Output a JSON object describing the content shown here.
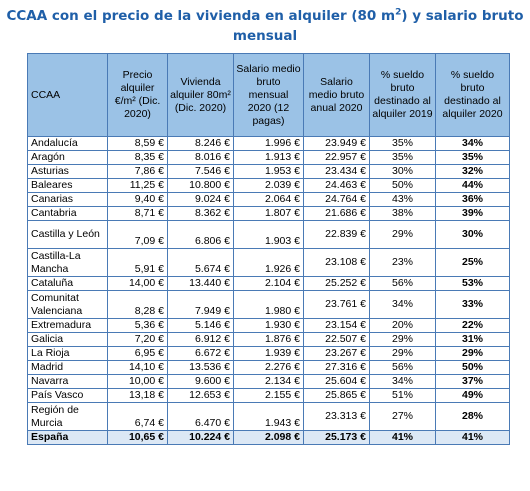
{
  "title": {
    "line1_pre": "CCAA con el precio de la vivienda en alquiler (80 m",
    "sup": "2",
    "line1_post": ") y salario bruto",
    "line2": "mensual"
  },
  "headers": {
    "ccaa": "CCAA",
    "precio": "Precio alquiler €/m² (Dic. 2020)",
    "vivienda": "Vivienda alquiler 80m² (Dic. 2020)",
    "salario_mensual": "Salario medio bruto mensual 2020 (12 pagas)",
    "salario_anual": "Salario medio bruto anual 2020",
    "pct2019": "% sueldo bruto destinado al alquiler 2019",
    "pct2020": "% sueldo bruto destinado al alquiler 2020"
  },
  "rows": [
    {
      "ccaa": "Andalucía",
      "precio": "8,59 €",
      "vivienda": "8.246 €",
      "mensual": "1.996 €",
      "anual": "23.949 €",
      "p2019": "35%",
      "p2020": "34%"
    },
    {
      "ccaa": "Aragón",
      "precio": "8,35 €",
      "vivienda": "8.016 €",
      "mensual": "1.913 €",
      "anual": "22.957 €",
      "p2019": "35%",
      "p2020": "35%"
    },
    {
      "ccaa": "Asturias",
      "precio": "7,86 €",
      "vivienda": "7.546 €",
      "mensual": "1.953 €",
      "anual": "23.434 €",
      "p2019": "30%",
      "p2020": "32%"
    },
    {
      "ccaa": "Baleares",
      "precio": "11,25 €",
      "vivienda": "10.800 €",
      "mensual": "2.039 €",
      "anual": "24.463 €",
      "p2019": "50%",
      "p2020": "44%"
    },
    {
      "ccaa": "Canarias",
      "precio": "9,40 €",
      "vivienda": "9.024 €",
      "mensual": "2.064 €",
      "anual": "24.764 €",
      "p2019": "43%",
      "p2020": "36%"
    },
    {
      "ccaa": "Cantabria",
      "precio": "8,71 €",
      "vivienda": "8.362 €",
      "mensual": "1.807 €",
      "anual": "21.686 €",
      "p2019": "38%",
      "p2020": "39%"
    },
    {
      "ccaa": "Castilla y León",
      "precio": "7,09 €",
      "vivienda": "6.806 €",
      "mensual": "1.903 €",
      "anual": "22.839 €",
      "p2019": "29%",
      "p2020": "30%",
      "tall": true
    },
    {
      "ccaa": "Castilla-La Mancha",
      "precio": "5,91 €",
      "vivienda": "5.674 €",
      "mensual": "1.926 €",
      "anual": "23.108 €",
      "p2019": "23%",
      "p2020": "25%",
      "tall": true
    },
    {
      "ccaa": "Cataluña",
      "precio": "14,00 €",
      "vivienda": "13.440 €",
      "mensual": "2.104 €",
      "anual": "25.252 €",
      "p2019": "56%",
      "p2020": "53%"
    },
    {
      "ccaa": "Comunitat Valenciana",
      "precio": "8,28 €",
      "vivienda": "7.949 €",
      "mensual": "1.980 €",
      "anual": "23.761 €",
      "p2019": "34%",
      "p2020": "33%",
      "tall": true
    },
    {
      "ccaa": "Extremadura",
      "precio": "5,36 €",
      "vivienda": "5.146 €",
      "mensual": "1.930 €",
      "anual": "23.154 €",
      "p2019": "20%",
      "p2020": "22%"
    },
    {
      "ccaa": "Galicia",
      "precio": "7,20 €",
      "vivienda": "6.912 €",
      "mensual": "1.876 €",
      "anual": "22.507 €",
      "p2019": "29%",
      "p2020": "31%"
    },
    {
      "ccaa": "La Rioja",
      "precio": "6,95 €",
      "vivienda": "6.672 €",
      "mensual": "1.939 €",
      "anual": "23.267 €",
      "p2019": "29%",
      "p2020": "29%"
    },
    {
      "ccaa": "Madrid",
      "precio": "14,10 €",
      "vivienda": "13.536 €",
      "mensual": "2.276 €",
      "anual": "27.316 €",
      "p2019": "56%",
      "p2020": "50%"
    },
    {
      "ccaa": "Navarra",
      "precio": "10,00 €",
      "vivienda": "9.600 €",
      "mensual": "2.134 €",
      "anual": "25.604 €",
      "p2019": "34%",
      "p2020": "37%"
    },
    {
      "ccaa": "País Vasco",
      "precio": "13,18 €",
      "vivienda": "12.653 €",
      "mensual": "2.155 €",
      "anual": "25.865 €",
      "p2019": "51%",
      "p2020": "49%"
    },
    {
      "ccaa": "Región de Murcia",
      "precio": "6,74 €",
      "vivienda": "6.470 €",
      "mensual": "1.943 €",
      "anual": "23.313 €",
      "p2019": "27%",
      "p2020": "28%",
      "tall": true
    }
  ],
  "total": {
    "ccaa": "España",
    "precio": "10,65 €",
    "vivienda": "10.224 €",
    "mensual": "2.098 €",
    "anual": "25.173 €",
    "p2019": "41%",
    "p2020": "41%"
  }
}
